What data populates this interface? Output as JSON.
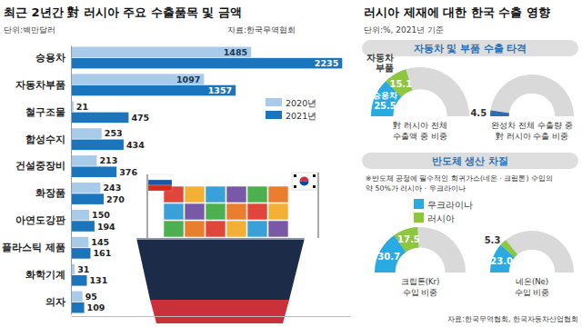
{
  "chart_data": [
    {
      "type": "bar",
      "title": "최근 2년간 對 러시아 주요 수출품목 및 금액",
      "subtitle": "단위:백만달러",
      "source": "자료:한국무역협회",
      "orientation": "horizontal",
      "categories": [
        "승용차",
        "자동차부품",
        "철구조물",
        "합성수지",
        "건설중장비",
        "화장품",
        "아연도강판",
        "플라스틱 제품",
        "화학기계",
        "의자"
      ],
      "series": [
        {
          "name": "2020년",
          "color": "#a8cbea",
          "values": [
            1485,
            1097,
            21,
            253,
            213,
            243,
            150,
            145,
            31,
            95
          ]
        },
        {
          "name": "2021년",
          "color": "#1b75bc",
          "values": [
            2235,
            1357,
            475,
            434,
            376,
            270,
            194,
            161,
            131,
            109
          ]
        }
      ],
      "xlim": [
        0,
        2300
      ],
      "tick_labels": "y",
      "data_labels": true,
      "legend": "right"
    },
    {
      "type": "donut",
      "title": "자동차 및 부품 수출 타격",
      "annotation": "對 러시아 전체\n수출액 중 비중",
      "categories": [
        "승용차",
        "자동차\n부품"
      ],
      "values": [
        25.5,
        15.1
      ],
      "colors": [
        "#29abe2",
        "#8dc63f"
      ],
      "ylim": [
        0,
        100
      ],
      "data_labels": true
    },
    {
      "type": "donut",
      "annotation": "완성차 전체 수출량 중\n對 러시아 수출 비중",
      "categories": [
        null
      ],
      "values": [
        4.5
      ],
      "colors": [
        "#2e6db4"
      ],
      "ylim": [
        0,
        100
      ],
      "data_labels": true
    },
    {
      "type": "donut",
      "title": "반도체 생산 차질",
      "annotation": "※반도체 공정에 필수적인 희귀가스(네온 · 크립톤) 수입의\n약 50%가 러시아 · 우크라이나",
      "categories": [
        "크립톤(Kr)\n수입 비중",
        "네온(Ne)\n수입 비중"
      ],
      "series": [
        {
          "name": "우크라이나",
          "color": "#29abe2",
          "values": [
            30.7,
            23.0
          ],
          "value_labels": [
            "30.7",
            "23.0"
          ]
        },
        {
          "name": "러시아",
          "color": "#8dc63f",
          "values": [
            17.5,
            5.3
          ]
        }
      ],
      "ylim": [
        0,
        100
      ],
      "legend": "top",
      "data_labels": true
    }
  ],
  "panel": {
    "title": "러시아 제재에 대한 한국 수출 영향",
    "subtitle": "단위:%, 2021년 기준",
    "source": "자료:한국무역협회, 한국자동차산업협회"
  }
}
